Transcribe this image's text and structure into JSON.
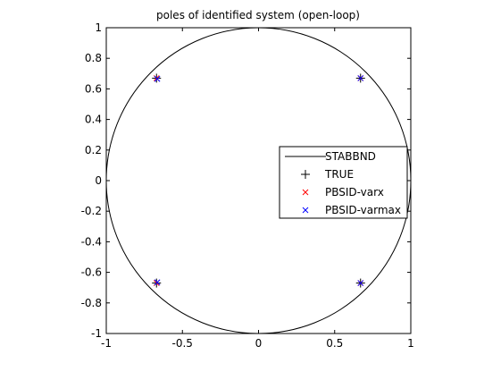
{
  "chart_data": {
    "type": "scatter",
    "title": "poles of identified system (open-loop)",
    "xlabel": "",
    "ylabel": "",
    "xlim": [
      -1,
      1
    ],
    "ylim": [
      -1,
      1
    ],
    "x_ticks": [
      -1,
      -0.5,
      0,
      0.5,
      1
    ],
    "x_tick_labels": [
      "-1",
      "-0.5",
      "0",
      "0.5",
      "1"
    ],
    "y_ticks": [
      1,
      0.8,
      0.6,
      0.4,
      0.2,
      0,
      -0.2,
      -0.4,
      -0.6,
      -0.8,
      -1
    ],
    "y_tick_labels": [
      "1",
      "0.8",
      "0.6",
      "0.4",
      "0.2",
      "0",
      "-0.2",
      "-0.4",
      "-0.6",
      "-0.8",
      "-1"
    ],
    "grid": false,
    "legend_position": "right",
    "series": [
      {
        "name": "STABBND",
        "kind": "circle",
        "center": [
          0,
          0
        ],
        "radius": 1,
        "color": "#000000"
      },
      {
        "name": "TRUE",
        "kind": "plus",
        "color": "#000000",
        "points": [
          [
            -0.67,
            0.67
          ],
          [
            0.67,
            0.67
          ],
          [
            -0.67,
            -0.67
          ],
          [
            0.67,
            -0.67
          ]
        ]
      },
      {
        "name": "PBSID-varx",
        "kind": "x",
        "color": "#ff0000",
        "points": [
          [
            -0.67,
            0.67
          ],
          [
            0.67,
            0.67
          ],
          [
            -0.67,
            -0.67
          ],
          [
            0.67,
            -0.67
          ]
        ]
      },
      {
        "name": "PBSID-varmax",
        "kind": "x",
        "color": "#0000ff",
        "points": [
          [
            -0.665,
            0.665
          ],
          [
            0.67,
            0.67
          ],
          [
            -0.665,
            -0.665
          ],
          [
            0.67,
            -0.67
          ]
        ]
      }
    ]
  }
}
